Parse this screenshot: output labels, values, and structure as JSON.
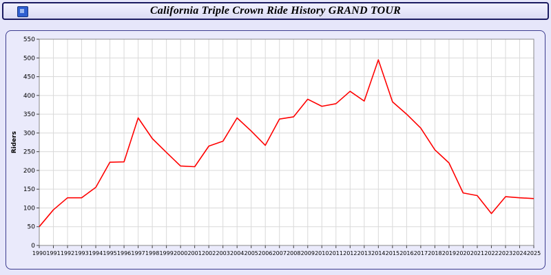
{
  "header": {
    "title": "California Triple Crown Ride History GRAND TOUR",
    "icon_color": "#2f5fd0"
  },
  "chart_data": {
    "type": "line",
    "title": "California Triple Crown Ride History GRAND TOUR",
    "xlabel": "",
    "ylabel": "Riders",
    "x": [
      1990,
      1991,
      1992,
      1993,
      1994,
      1995,
      1996,
      1997,
      1998,
      1999,
      2000,
      2001,
      2002,
      2003,
      2004,
      2005,
      2006,
      2007,
      2008,
      2009,
      2010,
      2011,
      2012,
      2013,
      2014,
      2015,
      2016,
      2017,
      2018,
      2019,
      2020,
      2021,
      2022,
      2023,
      2024,
      2025
    ],
    "values": [
      50,
      95,
      127,
      127,
      155,
      222,
      223,
      340,
      285,
      248,
      212,
      210,
      265,
      278,
      340,
      305,
      267,
      337,
      343,
      390,
      371,
      378,
      411,
      385,
      495,
      383,
      350,
      313,
      255,
      220,
      140,
      133,
      85,
      130,
      127,
      125
    ],
    "ylim": [
      0,
      550
    ],
    "ytick_step": 50,
    "grid": true,
    "legend": "none",
    "line_color": "#ff0000",
    "plot_bg": "#ffffff",
    "grid_color": "#d9d9d9",
    "axis_color": "#888888",
    "tick_color": "#444444"
  }
}
